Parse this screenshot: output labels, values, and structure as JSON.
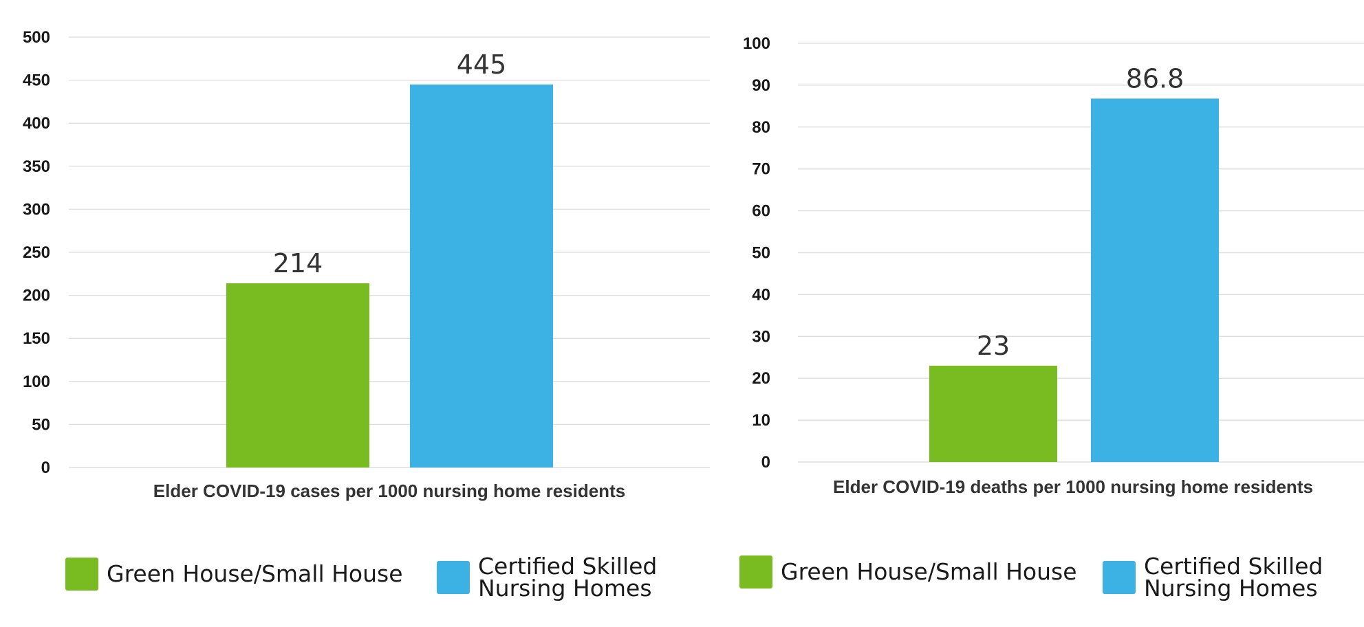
{
  "colors": {
    "green": "#78BC22",
    "blue": "#3BB2E3",
    "grid": "#E0E0E0"
  },
  "chart_data": [
    {
      "type": "bar",
      "xlabel": "Elder COVID-19 cases per 1000 nursing home residents",
      "ylim": [
        0,
        500
      ],
      "yticks": [
        0,
        50,
        100,
        150,
        200,
        250,
        300,
        350,
        400,
        450,
        500
      ],
      "grid": true,
      "series": [
        {
          "name": "Green House/Small House",
          "values": [
            214
          ],
          "labels": [
            "214"
          ],
          "color": "#78BC22"
        },
        {
          "name": "Certified Skilled\nNursing Homes",
          "values": [
            445
          ],
          "labels": [
            "445"
          ],
          "color": "#3BB2E3"
        }
      ],
      "legend": "bottom"
    },
    {
      "type": "bar",
      "xlabel": "Elder COVID-19 deaths per 1000 nursing home residents",
      "ylim": [
        0,
        100
      ],
      "yticks": [
        0,
        10,
        20,
        30,
        40,
        50,
        60,
        70,
        80,
        90,
        100
      ],
      "grid": true,
      "series": [
        {
          "name": "Green House/Small House",
          "values": [
            23
          ],
          "labels": [
            "23"
          ],
          "color": "#78BC22"
        },
        {
          "name": "Certified Skilled\nNursing Homes",
          "values": [
            86.8
          ],
          "labels": [
            "86.8"
          ],
          "color": "#3BB2E3"
        }
      ],
      "legend": "bottom"
    }
  ]
}
